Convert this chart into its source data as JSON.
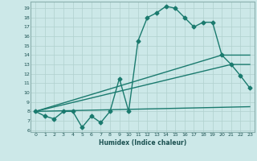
{
  "xlabel": "Humidex (Indice chaleur)",
  "bg_color": "#cce8e8",
  "line_color": "#1a7a6e",
  "grid_color": "#b0d0ce",
  "xlim": [
    -0.5,
    23.5
  ],
  "ylim": [
    5.8,
    19.7
  ],
  "yticks": [
    6,
    7,
    8,
    9,
    10,
    11,
    12,
    13,
    14,
    15,
    16,
    17,
    18,
    19
  ],
  "xticks": [
    0,
    1,
    2,
    3,
    4,
    5,
    6,
    7,
    8,
    9,
    10,
    11,
    12,
    13,
    14,
    15,
    16,
    17,
    18,
    19,
    20,
    21,
    22,
    23
  ],
  "series": [
    {
      "x": [
        0,
        1,
        2,
        3,
        4,
        5,
        6,
        7,
        8,
        9,
        10,
        11,
        12,
        13,
        14,
        15,
        16,
        17,
        18,
        19,
        20,
        21,
        22,
        23
      ],
      "y": [
        8.0,
        7.5,
        7.2,
        8.0,
        8.0,
        6.3,
        7.5,
        6.8,
        8.0,
        11.5,
        8.0,
        15.5,
        18.0,
        18.5,
        19.2,
        19.0,
        18.0,
        17.0,
        17.5,
        17.5,
        14.0,
        13.0,
        11.8,
        10.5
      ],
      "marker": "D",
      "markersize": 2.5,
      "linewidth": 1.0
    },
    {
      "x": [
        0,
        20,
        23
      ],
      "y": [
        8.0,
        14.0,
        14.0
      ],
      "marker": null,
      "markersize": 0,
      "linewidth": 1.0
    },
    {
      "x": [
        0,
        21,
        23
      ],
      "y": [
        8.0,
        13.0,
        13.0
      ],
      "marker": null,
      "markersize": 0,
      "linewidth": 1.0
    },
    {
      "x": [
        0,
        23
      ],
      "y": [
        8.0,
        8.5
      ],
      "marker": null,
      "markersize": 0,
      "linewidth": 1.0
    }
  ]
}
